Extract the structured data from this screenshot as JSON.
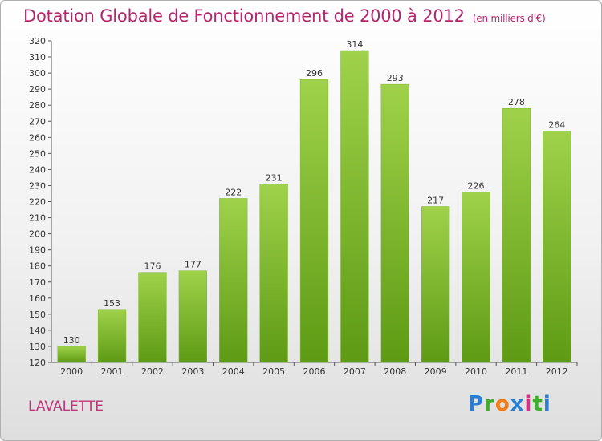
{
  "header": {
    "title": "Dotation Globale de Fonctionnement de 2000 à 2012",
    "subtitle": "(en milliers d'€)"
  },
  "footer": {
    "commune": "LAVALETTE",
    "logo_letters": [
      "P",
      "r",
      "o",
      "x",
      "i",
      "t",
      "i"
    ],
    "logo_colors": [
      "#2a7fd4",
      "#3fae2a",
      "#f07c1a",
      "#2a7fd4",
      "#d62f8a",
      "#3fae2a",
      "#2a7fd4"
    ]
  },
  "colors": {
    "bar_light": "#9fd24a",
    "bar_dark": "#5e9a14",
    "title": "#b5266e"
  },
  "chart_data": {
    "type": "bar",
    "categories": [
      "2000",
      "2001",
      "2002",
      "2003",
      "2004",
      "2005",
      "2006",
      "2007",
      "2008",
      "2009",
      "2010",
      "2011",
      "2012"
    ],
    "values": [
      130,
      153,
      176,
      177,
      222,
      231,
      296,
      314,
      293,
      217,
      226,
      278,
      264
    ],
    "ylim": [
      120,
      320
    ],
    "yticks": [
      120,
      130,
      140,
      150,
      160,
      170,
      180,
      190,
      200,
      210,
      220,
      230,
      240,
      250,
      260,
      270,
      280,
      290,
      300,
      310,
      320
    ],
    "grid": false
  }
}
